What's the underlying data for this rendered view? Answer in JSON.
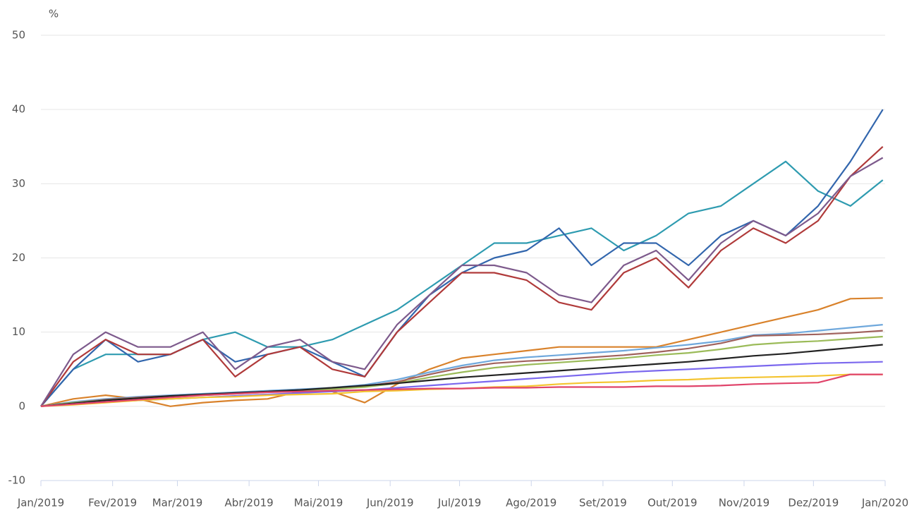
{
  "chart_data": {
    "type": "line",
    "y_label": "%",
    "x": [
      0,
      14,
      28,
      42,
      56,
      70,
      84,
      98,
      112,
      126,
      140,
      154,
      168,
      182,
      196,
      210,
      224,
      238,
      252,
      266,
      280,
      294,
      308,
      322,
      336,
      350,
      364
    ],
    "xlim": [
      0,
      365
    ],
    "xticks": [
      {
        "value": 0,
        "label": "Jan/2019"
      },
      {
        "value": 31,
        "label": "Fev/2019"
      },
      {
        "value": 59,
        "label": "Mar/2019"
      },
      {
        "value": 90,
        "label": "Abr/2019"
      },
      {
        "value": 120,
        "label": "Mai/2019"
      },
      {
        "value": 151,
        "label": "Jun/2019"
      },
      {
        "value": 181,
        "label": "Jul/2019"
      },
      {
        "value": 212,
        "label": "Ago/2019"
      },
      {
        "value": 243,
        "label": "Set/2019"
      },
      {
        "value": 273,
        "label": "Out/2019"
      },
      {
        "value": 304,
        "label": "Nov/2019"
      },
      {
        "value": 334,
        "label": "Dez/2019"
      },
      {
        "value": 365,
        "label": "Jan/2020"
      }
    ],
    "ylim": [
      -10,
      50
    ],
    "yticks": [
      -10,
      0,
      10,
      20,
      30,
      40,
      50
    ],
    "grid": true,
    "series": [
      {
        "color": "#2e9bb0",
        "values": [
          0,
          5,
          7,
          7,
          7,
          9,
          10,
          8,
          8,
          9,
          11,
          13,
          16,
          19,
          22,
          22,
          23,
          24,
          21,
          23,
          26,
          27,
          30,
          33,
          29,
          27,
          30.5
        ]
      },
      {
        "color": "#3266ad",
        "values": [
          0,
          5,
          9,
          6,
          7,
          9,
          6,
          7,
          8,
          6,
          4,
          10,
          15,
          18,
          20,
          21,
          24,
          19,
          22,
          22,
          19,
          23,
          25,
          23,
          27,
          33,
          40
        ]
      },
      {
        "color": "#b03a3a",
        "values": [
          0,
          6,
          9,
          7,
          7,
          9,
          4,
          7,
          8,
          5,
          4,
          10,
          14,
          18,
          18,
          17,
          14,
          13,
          18,
          20,
          16,
          21,
          24,
          22,
          25,
          31,
          35
        ]
      },
      {
        "color": "#7d5a8c",
        "values": [
          0,
          7,
          10,
          8,
          8,
          10,
          5,
          8,
          9,
          6,
          5,
          11,
          15,
          19,
          19,
          18,
          15,
          14,
          19,
          21,
          17,
          22,
          25,
          23,
          26,
          31,
          33.5
        ]
      },
      {
        "color": "#d9822b",
        "values": [
          0,
          1,
          1.5,
          1,
          0,
          0.5,
          0.8,
          1,
          2,
          2,
          0.5,
          3,
          5,
          6.5,
          7,
          7.5,
          8,
          8,
          8,
          8,
          9,
          10,
          11,
          12,
          13,
          14.5,
          14.6
        ]
      },
      {
        "color": "#6fa8dc",
        "values": [
          0,
          0.6,
          1,
          1.3,
          1.5,
          1.7,
          1.9,
          2.1,
          2.3,
          2.5,
          2.9,
          3.6,
          4.6,
          5.5,
          6.2,
          6.6,
          6.9,
          7.2,
          7.5,
          7.9,
          8.3,
          8.8,
          9.6,
          9.8,
          10.2,
          10.6,
          11
        ]
      },
      {
        "color": "#a0625d",
        "values": [
          0,
          0.5,
          0.9,
          1.2,
          1.4,
          1.6,
          1.8,
          2,
          2.2,
          2.4,
          2.7,
          3.3,
          4.3,
          5.2,
          5.8,
          6.1,
          6.3,
          6.6,
          6.9,
          7.3,
          7.8,
          8.5,
          9.5,
          9.6,
          9.7,
          9.9,
          10.2
        ]
      },
      {
        "color": "#9bbb59",
        "values": [
          0,
          0.5,
          0.8,
          1.1,
          1.3,
          1.5,
          1.7,
          1.9,
          2.1,
          2.3,
          2.6,
          3.1,
          3.9,
          4.6,
          5.2,
          5.6,
          5.9,
          6.2,
          6.5,
          6.9,
          7.2,
          7.7,
          8.3,
          8.6,
          8.8,
          9.1,
          9.4
        ]
      },
      {
        "color": "#222222",
        "values": [
          0,
          0.4,
          0.8,
          1.1,
          1.4,
          1.6,
          1.8,
          2,
          2.2,
          2.5,
          2.8,
          3.1,
          3.5,
          3.9,
          4.2,
          4.5,
          4.8,
          5.1,
          5.4,
          5.7,
          6,
          6.4,
          6.8,
          7.1,
          7.5,
          7.9,
          8.3
        ]
      },
      {
        "color": "#7b68ee",
        "values": [
          0,
          0.3,
          0.6,
          0.8,
          1,
          1.2,
          1.4,
          1.6,
          1.8,
          2,
          2.2,
          2.5,
          2.8,
          3.1,
          3.4,
          3.7,
          4,
          4.3,
          4.6,
          4.8,
          5,
          5.2,
          5.4,
          5.6,
          5.8,
          5.9,
          6
        ]
      },
      {
        "color": "#f4c430",
        "values": [
          0,
          0.2,
          0.5,
          0.8,
          1,
          1.2,
          1.3,
          1.5,
          1.6,
          1.7,
          2,
          2.1,
          2.3,
          2.4,
          2.6,
          2.7,
          3,
          3.2,
          3.3,
          3.5,
          3.6,
          3.8,
          3.9,
          4,
          4.1,
          4.3,
          4.3
        ]
      },
      {
        "color": "#e0436a",
        "values": [
          0,
          0.3,
          0.6,
          0.9,
          1.2,
          1.5,
          1.7,
          1.9,
          2,
          2.1,
          2.2,
          2.3,
          2.4,
          2.4,
          2.5,
          2.5,
          2.6,
          2.6,
          2.6,
          2.7,
          2.7,
          2.8,
          3,
          3.1,
          3.2,
          4.3,
          4.3
        ]
      }
    ]
  }
}
